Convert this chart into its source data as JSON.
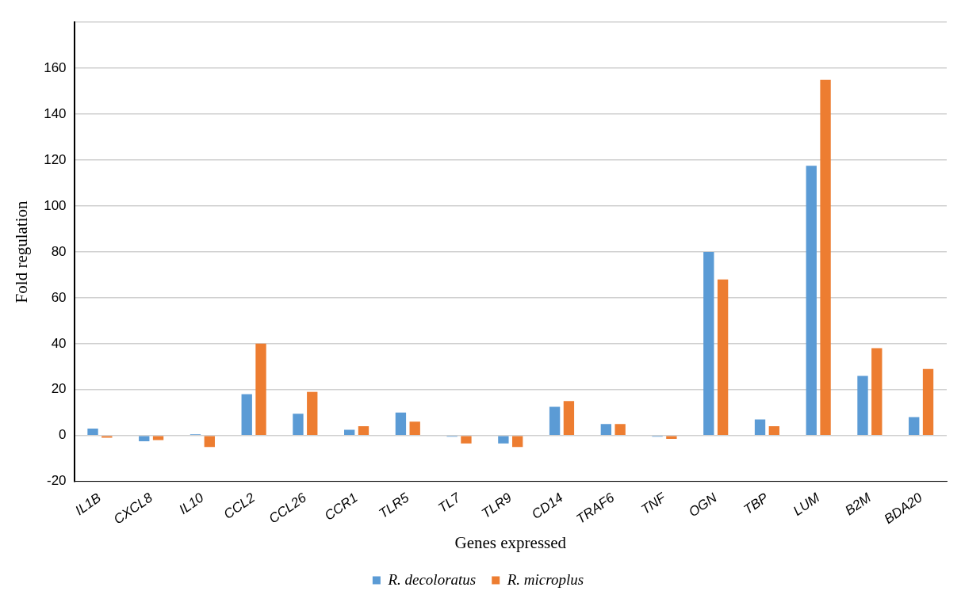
{
  "chart_data": {
    "type": "bar",
    "xlabel": "Genes expressed",
    "ylabel": "Fold regulation",
    "categories": [
      "IL1B",
      "CXCL8",
      "IL10",
      "CCL2",
      "CCL26",
      "CCR1",
      "TLR5",
      "TL7",
      "TLR9",
      "CD14",
      "TRAF6",
      "TNF",
      "OGN",
      "TBP",
      "LUM",
      "B2M",
      "BDA20"
    ],
    "series": [
      {
        "name": "R. decoloratus",
        "color": "#5b9bd5",
        "values": [
          3,
          -2.5,
          0.5,
          18,
          9.5,
          2.5,
          10,
          -0.5,
          -3.5,
          12.5,
          5,
          -0.5,
          80,
          7,
          117.5,
          26,
          8
        ]
      },
      {
        "name": "R. microplus",
        "color": "#ed7d31",
        "values": [
          -1,
          -2,
          -5,
          40,
          19,
          4,
          6,
          -3.5,
          -5,
          15,
          5,
          -1.5,
          68,
          4,
          155,
          38,
          29
        ]
      }
    ],
    "ylim": [
      -20,
      180
    ],
    "yticks": [
      -20,
      0,
      20,
      40,
      60,
      80,
      100,
      120,
      140,
      160,
      {
        "value": 180,
        "label": null
      }
    ],
    "grid": "y",
    "legend": "bottom"
  }
}
